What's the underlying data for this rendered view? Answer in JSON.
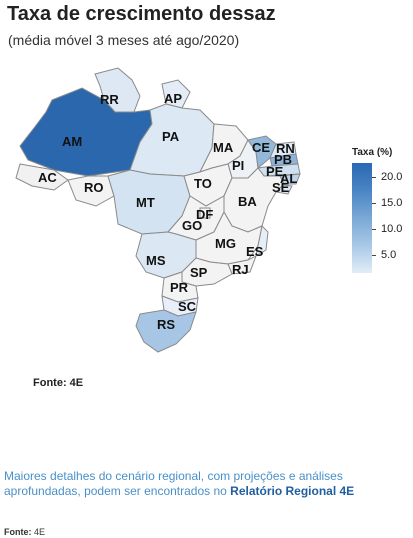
{
  "title": "Taxa de crescimento dessaz",
  "subtitle": "(média móvel 3 meses até ago/2020)",
  "legend": {
    "title": "Taxa (%)",
    "ticks": [
      "20.0",
      "15.0",
      "10.0",
      "5.0"
    ]
  },
  "map_states": [
    {
      "abbr": "RR",
      "fill": "#dde8f4"
    },
    {
      "abbr": "AP",
      "fill": "#e4edf7"
    },
    {
      "abbr": "AM",
      "fill": "#2b67ad"
    },
    {
      "abbr": "PA",
      "fill": "#dce8f4"
    },
    {
      "abbr": "MA",
      "fill": "#f3f3f3"
    },
    {
      "abbr": "CE",
      "fill": "#92b8dc"
    },
    {
      "abbr": "RN",
      "fill": "#dfe9f5"
    },
    {
      "abbr": "PB",
      "fill": "#8cb4da"
    },
    {
      "abbr": "PE",
      "fill": "#cfe0f0"
    },
    {
      "abbr": "AL",
      "fill": "#bcd3ea"
    },
    {
      "abbr": "SE",
      "fill": "#dfe9f5"
    },
    {
      "abbr": "PI",
      "fill": "#eef2f7"
    },
    {
      "abbr": "AC",
      "fill": "#f1f1f1"
    },
    {
      "abbr": "RO",
      "fill": "#f3f3f3"
    },
    {
      "abbr": "TO",
      "fill": "#f3f3f3"
    },
    {
      "abbr": "BA",
      "fill": "#f3f3f3"
    },
    {
      "abbr": "MT",
      "fill": "#d3e3f1"
    },
    {
      "abbr": "DF",
      "fill": "#f3f3f3"
    },
    {
      "abbr": "GO",
      "fill": "#f3f3f3"
    },
    {
      "abbr": "MG",
      "fill": "#f3f3f3"
    },
    {
      "abbr": "ES",
      "fill": "#e6eef7"
    },
    {
      "abbr": "MS",
      "fill": "#dbe7f3"
    },
    {
      "abbr": "SP",
      "fill": "#f3f3f3"
    },
    {
      "abbr": "RJ",
      "fill": "#f3f3f3"
    },
    {
      "abbr": "PR",
      "fill": "#f3f3f3"
    },
    {
      "abbr": "SC",
      "fill": "#e8eff8"
    },
    {
      "abbr": "RS",
      "fill": "#a7c6e5"
    }
  ],
  "source_chart": "Fonte: 4E",
  "details": {
    "text": "Maiores detalhes do cenário regional, com projeções e análises aprofundadas, podem ser encontrados no ",
    "link": "Relatório Regional 4E"
  },
  "source_footer": {
    "label": "Fonte:",
    "value": "4E"
  }
}
